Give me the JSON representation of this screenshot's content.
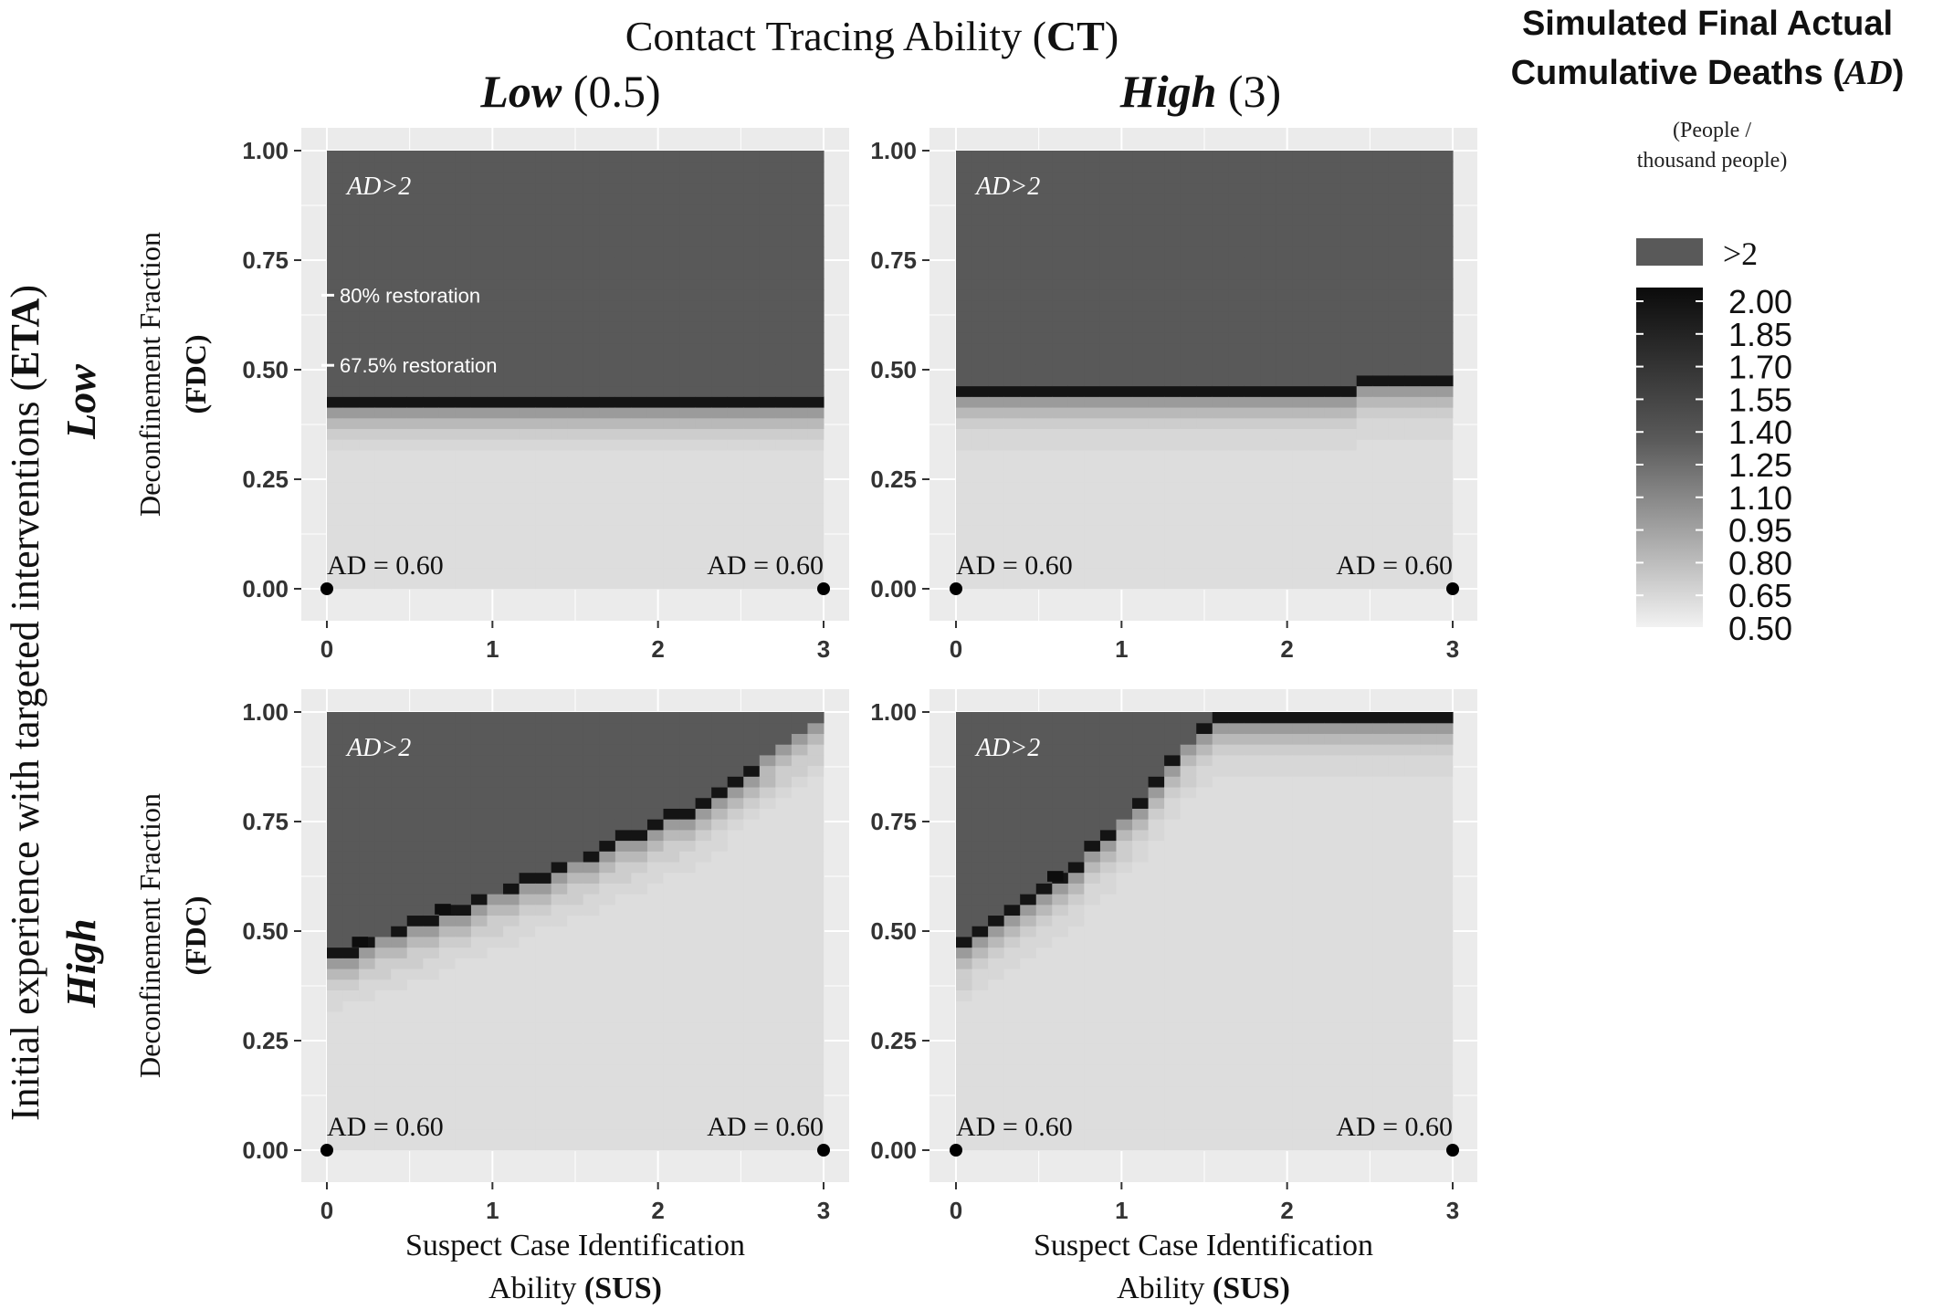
{
  "figure": {
    "top_title_prefix": "Contact Tracing Ability (",
    "top_title_bold": "CT",
    "top_title_suffix": ")",
    "col_low_word": "Low",
    "col_low_value": " (0.5)",
    "col_high_word": "High",
    "col_high_value": " (3)",
    "left_title_prefix": "Initial experience with targeted interventions (",
    "left_title_bold": "ETA",
    "left_title_suffix": ")",
    "row_low_label": "Low",
    "row_high_label": "High",
    "ylabel_line1": "Deconfinement Fraction",
    "ylabel_line2": "(FDC)",
    "xlabel_line1": "Suspect Case Identification",
    "xlabel_line2_prefix": "Ability ",
    "xlabel_line2_bold": "(SUS)"
  },
  "legend": {
    "title_line1": "Simulated Final Actual",
    "title_line2_prefix": "Cumulative Deaths (",
    "title_line2_italic": "AD",
    "title_line2_suffix": ")",
    "units_line1": "(People /",
    "units_line2": "thousand people)",
    "over_label": ">2",
    "over_color": "#595959",
    "ticks": [
      "2.00",
      "1.85",
      "1.70",
      "1.55",
      "1.40",
      "1.25",
      "1.10",
      "0.95",
      "0.80",
      "0.65",
      "0.50"
    ]
  },
  "chart_data": [
    {
      "type": "heatmap",
      "row": "Low ETA",
      "col": "Low CT (0.5)",
      "xlabel": "Suspect Case Identification Ability (SUS)",
      "ylabel": "Deconfinement Fraction (FDC)",
      "xlim": [
        0,
        3
      ],
      "ylim": [
        0,
        1
      ],
      "x_ticks": [
        "0",
        "1",
        "2",
        "3"
      ],
      "y_ticks": [
        "0.00",
        "0.25",
        "0.50",
        "0.75",
        "1.00"
      ],
      "boundary": [
        [
          0,
          0.445
        ],
        [
          3,
          0.445
        ]
      ],
      "dark_cells": [],
      "region_label_prefix": "AD",
      "region_label_suffix": ">2",
      "annotations": [
        {
          "text": "80% restoration",
          "y": 0.67
        },
        {
          "text": "67.5% restoration",
          "y": 0.51
        }
      ],
      "points": [
        {
          "x": 0,
          "y": 0,
          "label_prefix": "AD",
          "label_suffix": " = 0.60"
        },
        {
          "x": 3,
          "y": 0,
          "label_prefix": "AD",
          "label_suffix": " = 0.60"
        }
      ]
    },
    {
      "type": "heatmap",
      "row": "Low ETA",
      "col": "High CT (3)",
      "xlabel": "Suspect Case Identification Ability (SUS)",
      "ylabel": "Deconfinement Fraction (FDC)",
      "xlim": [
        0,
        3
      ],
      "ylim": [
        0,
        1
      ],
      "x_ticks": [
        "0",
        "1",
        "2",
        "3"
      ],
      "y_ticks": [
        "0.00",
        "0.25",
        "0.50",
        "0.75",
        "1.00"
      ],
      "boundary": [
        [
          0,
          0.46
        ],
        [
          2.45,
          0.46
        ],
        [
          2.45,
          0.485
        ],
        [
          3,
          0.485
        ]
      ],
      "dark_cells": [],
      "region_label_prefix": "AD",
      "region_label_suffix": ">2",
      "annotations": [],
      "points": [
        {
          "x": 0,
          "y": 0,
          "label_prefix": "AD",
          "label_suffix": " = 0.60"
        },
        {
          "x": 3,
          "y": 0,
          "label_prefix": "AD",
          "label_suffix": " = 0.60"
        }
      ]
    },
    {
      "type": "heatmap",
      "row": "High ETA",
      "col": "Low CT (0.5)",
      "xlabel": "Suspect Case Identification Ability (SUS)",
      "ylabel": "Deconfinement Fraction (FDC)",
      "xlim": [
        0,
        3
      ],
      "ylim": [
        0,
        1
      ],
      "x_ticks": [
        "0",
        "1",
        "2",
        "3"
      ],
      "y_ticks": [
        "0.00",
        "0.25",
        "0.50",
        "0.75",
        "1.00"
      ],
      "boundary": [
        [
          0,
          0.45
        ],
        [
          0.7,
          0.55
        ],
        [
          1.5,
          0.67
        ],
        [
          2.2,
          0.79
        ],
        [
          3,
          1.0
        ]
      ],
      "dark_cells": [
        [
          0.2,
          0.475
        ],
        [
          0.7,
          0.55
        ]
      ],
      "region_label_prefix": "AD",
      "region_label_suffix": ">2",
      "annotations": [],
      "points": [
        {
          "x": 0,
          "y": 0,
          "label_prefix": "AD",
          "label_suffix": " = 0.60"
        },
        {
          "x": 3,
          "y": 0,
          "label_prefix": "AD",
          "label_suffix": " = 0.60"
        }
      ]
    },
    {
      "type": "heatmap",
      "row": "High ETA",
      "col": "High CT (3)",
      "xlabel": "Suspect Case Identification Ability (SUS)",
      "ylabel": "Deconfinement Fraction (FDC)",
      "xlim": [
        0,
        3
      ],
      "ylim": [
        0,
        1
      ],
      "x_ticks": [
        "0",
        "1",
        "2",
        "3"
      ],
      "y_ticks": [
        "0.00",
        "0.25",
        "0.50",
        "0.75",
        "1.00"
      ],
      "boundary": [
        [
          0,
          0.465
        ],
        [
          0.6,
          0.62
        ],
        [
          1.0,
          0.76
        ],
        [
          1.55,
          1.0
        ]
      ],
      "dark_cells": [
        [
          0.6,
          0.625
        ]
      ],
      "region_label_prefix": "AD",
      "region_label_suffix": ">2",
      "annotations": [],
      "points": [
        {
          "x": 0,
          "y": 0,
          "label_prefix": "AD",
          "label_suffix": " = 0.60"
        },
        {
          "x": 3,
          "y": 0,
          "label_prefix": "AD",
          "label_suffix": " = 0.60"
        }
      ]
    }
  ]
}
